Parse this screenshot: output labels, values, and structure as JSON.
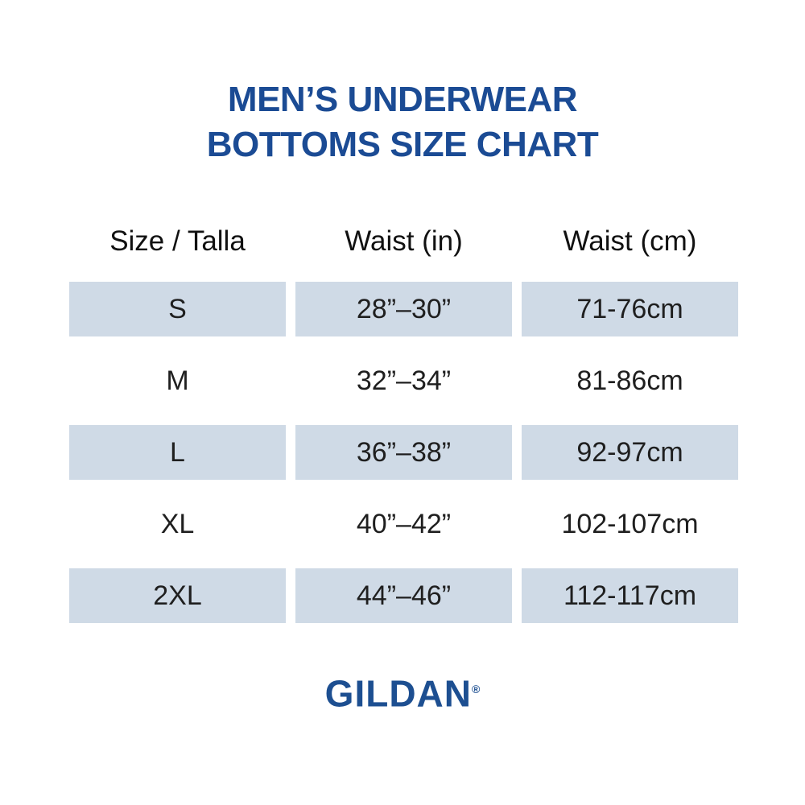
{
  "title": {
    "line1": "MEN’S UNDERWEAR",
    "line2": "BOTTOMS SIZE CHART"
  },
  "chart_data": {
    "type": "table",
    "title": "MEN’S UNDERWEAR BOTTOMS SIZE CHART",
    "columns": [
      "Size / Talla",
      "Waist (in)",
      "Waist (cm)"
    ],
    "rows": [
      {
        "size": "S",
        "waist_in": "28”–30”",
        "waist_cm": "71-76cm",
        "shaded": true
      },
      {
        "size": "M",
        "waist_in": "32”–34”",
        "waist_cm": "81-86cm",
        "shaded": false
      },
      {
        "size": "L",
        "waist_in": "36”–38”",
        "waist_cm": "92-97cm",
        "shaded": true
      },
      {
        "size": "XL",
        "waist_in": "40”–42”",
        "waist_cm": "102-107cm",
        "shaded": false
      },
      {
        "size": "2XL",
        "waist_in": "44”–46”",
        "waist_cm": "112-117cm",
        "shaded": true
      }
    ],
    "layout": {
      "shaded_row_indices": [
        0,
        2,
        4
      ],
      "grid": "off",
      "legend": "none"
    }
  },
  "brand": {
    "name": "GILDAN",
    "registered_mark": "®"
  },
  "colors": {
    "title_blue": "#1b4b94",
    "brand_blue": "#1d4f91",
    "row_shade": "#cfdae6",
    "text": "#1f1f1f",
    "background": "#ffffff"
  }
}
